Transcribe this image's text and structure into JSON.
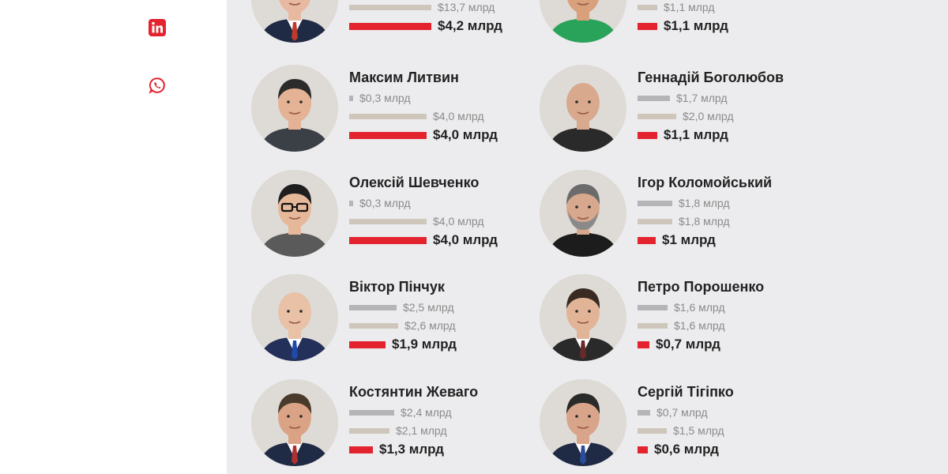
{
  "colors": {
    "accent": "#e3232d",
    "bar_gray": "#b5b5b8",
    "bar_beige": "#cfc6bb",
    "panel_bg": "#ececee"
  },
  "share": {
    "linkedin_icon": "linkedin-icon",
    "whatsapp_icon": "whatsapp-icon"
  },
  "people": [
    {
      "name": "",
      "values": [
        "",
        "$13,7 млрд",
        "$4,2 млрд"
      ],
      "fractions": [
        0,
        0.19,
        0.19
      ]
    },
    {
      "name": "",
      "values": [
        "",
        "$1,1 млрд",
        "$1,1 млрд"
      ],
      "fractions": [
        0,
        0.045,
        0.045
      ]
    },
    {
      "name": "Максим Литвин",
      "values": [
        "$0,3 млрд",
        "$4,0 млрд",
        "$4,0 млрд"
      ],
      "fractions": [
        0.009,
        0.18,
        0.18
      ]
    },
    {
      "name": "Геннадій Боголюбов",
      "values": [
        "$1,7 млрд",
        "$2,0 млрд",
        "$1,1 млрд"
      ],
      "fractions": [
        0.075,
        0.09,
        0.045
      ]
    },
    {
      "name": "Олексій Шевченко",
      "values": [
        "$0,3 млрд",
        "$4,0 млрд",
        "$4,0 млрд"
      ],
      "fractions": [
        0.009,
        0.18,
        0.18
      ]
    },
    {
      "name": "Ігор Коломойський",
      "values": [
        "$1,8 млрд",
        "$1,8 млрд",
        "$1 млрд"
      ],
      "fractions": [
        0.08,
        0.08,
        0.043
      ]
    },
    {
      "name": "Віктор Пінчук",
      "values": [
        "$2,5 млрд",
        "$2,6 млрд",
        "$1,9 млрд"
      ],
      "fractions": [
        0.11,
        0.114,
        0.085
      ]
    },
    {
      "name": "Петро Порошенко",
      "values": [
        "$1,6 млрд",
        "$1,6 млрд",
        "$0,7 млрд"
      ],
      "fractions": [
        0.07,
        0.07,
        0.027
      ]
    },
    {
      "name": "Костянтин Жеваго",
      "values": [
        "$2,4 млрд",
        "$2,1 млрд",
        "$1,3 млрд"
      ],
      "fractions": [
        0.105,
        0.093,
        0.055
      ]
    },
    {
      "name": "Сергій Тігіпко",
      "values": [
        "$0,7 млрд",
        "$1,5 млрд",
        "$0,6 млрд"
      ],
      "fractions": [
        0.03,
        0.068,
        0.023
      ]
    }
  ]
}
